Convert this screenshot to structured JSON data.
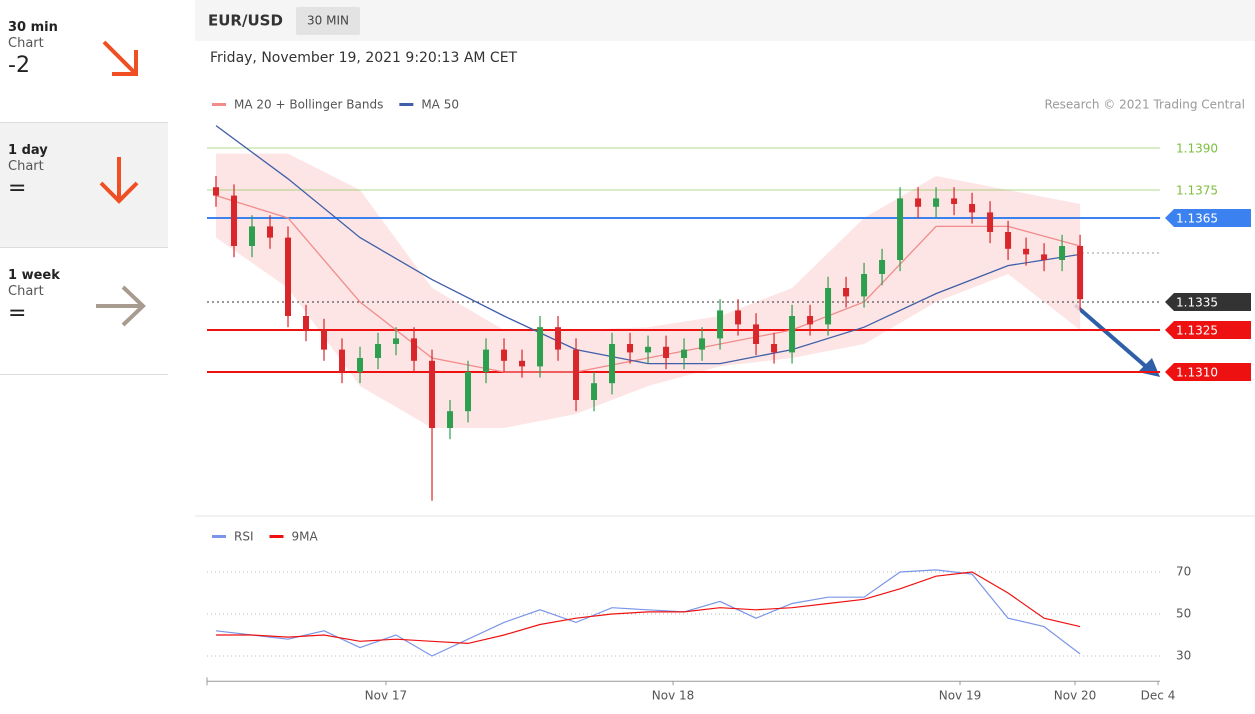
{
  "sidebar": [
    {
      "period": "30 min",
      "label": "Chart",
      "value": -2
    },
    {
      "period": "1 day",
      "label": "Chart",
      "value": "="
    },
    {
      "period": "1 week",
      "label": "Chart",
      "value": "="
    }
  ],
  "header": {
    "symbol": "EUR/USD",
    "interval": "30 MIN",
    "timestamp": "Friday, November 19, 2021 9:20:13 AM CET",
    "credit": "Research © 2021 Trading Central"
  },
  "chart_data": [
    {
      "type": "candlestick",
      "ylim": [
        1.1259,
        1.14
      ],
      "xlim": [
        -0.5,
        52.44
      ],
      "up_color": "#2e9e4f",
      "down_color": "#d9262b",
      "ohlc": {
        "open": [
          1.1376,
          1.1373,
          1.1355,
          1.1362,
          1.1358,
          1.133,
          1.1325,
          1.1318,
          1.131,
          1.1315,
          1.132,
          1.1322,
          1.1314,
          1.129,
          1.1296,
          1.131,
          1.1318,
          1.1314,
          1.1312,
          1.1326,
          1.1318,
          1.13,
          1.1306,
          1.132,
          1.1317,
          1.1319,
          1.1315,
          1.1318,
          1.1322,
          1.1332,
          1.1327,
          1.132,
          1.1317,
          1.133,
          1.1327,
          1.134,
          1.1337,
          1.1345,
          1.135,
          1.1372,
          1.1369,
          1.1372,
          1.137,
          1.1367,
          1.136,
          1.1354,
          1.1352,
          1.135,
          1.1355
        ],
        "high": [
          1.138,
          1.1377,
          1.1366,
          1.1366,
          1.1362,
          1.1334,
          1.1329,
          1.1322,
          1.1319,
          1.1324,
          1.1326,
          1.1326,
          1.1318,
          1.13,
          1.1314,
          1.1322,
          1.1322,
          1.1318,
          1.133,
          1.133,
          1.1322,
          1.131,
          1.1324,
          1.1324,
          1.1323,
          1.1323,
          1.1322,
          1.1326,
          1.1336,
          1.1336,
          1.1331,
          1.1324,
          1.1334,
          1.1334,
          1.1344,
          1.1344,
          1.1349,
          1.1354,
          1.1376,
          1.1376,
          1.1376,
          1.1376,
          1.1374,
          1.1371,
          1.1364,
          1.1358,
          1.1356,
          1.1359,
          1.1359
        ],
        "low": [
          1.1369,
          1.1351,
          1.1351,
          1.1354,
          1.1326,
          1.1321,
          1.1314,
          1.1306,
          1.1306,
          1.1311,
          1.1316,
          1.131,
          1.1264,
          1.1286,
          1.1292,
          1.1306,
          1.131,
          1.1308,
          1.1308,
          1.1314,
          1.1296,
          1.1296,
          1.1302,
          1.1313,
          1.1313,
          1.1311,
          1.1311,
          1.1314,
          1.1318,
          1.1323,
          1.1316,
          1.1313,
          1.1313,
          1.1323,
          1.1323,
          1.1333,
          1.1333,
          1.1341,
          1.1346,
          1.1365,
          1.1365,
          1.1366,
          1.1363,
          1.1356,
          1.135,
          1.1348,
          1.1346,
          1.1346,
          1.1332
        ],
        "close": [
          1.1373,
          1.1355,
          1.1362,
          1.1358,
          1.133,
          1.1325,
          1.1318,
          1.131,
          1.1315,
          1.132,
          1.1322,
          1.1314,
          1.129,
          1.1296,
          1.131,
          1.1318,
          1.1314,
          1.1312,
          1.1326,
          1.1318,
          1.13,
          1.1306,
          1.132,
          1.1317,
          1.1319,
          1.1315,
          1.1318,
          1.1322,
          1.1332,
          1.1327,
          1.132,
          1.1317,
          1.133,
          1.1327,
          1.134,
          1.1337,
          1.1345,
          1.135,
          1.1372,
          1.1369,
          1.1372,
          1.137,
          1.1367,
          1.136,
          1.1354,
          1.1352,
          1.135,
          1.1355,
          1.1336
        ]
      },
      "series": [
        {
          "name": "MA 20 + Bollinger Bands",
          "color": "#f28b8b",
          "band_color": "#fde0e0",
          "x": [
            0,
            4,
            8,
            12,
            16,
            20,
            24,
            28,
            32,
            36,
            40,
            44,
            48
          ],
          "values": [
            1.1373,
            1.1365,
            1.1335,
            1.1315,
            1.131,
            1.131,
            1.1315,
            1.132,
            1.1325,
            1.1335,
            1.1362,
            1.1362,
            1.1355
          ],
          "upper": [
            1.1388,
            1.1388,
            1.1375,
            1.134,
            1.1325,
            1.1325,
            1.1326,
            1.133,
            1.134,
            1.1365,
            1.138,
            1.1375,
            1.137
          ],
          "lower": [
            1.1358,
            1.134,
            1.1305,
            1.129,
            1.129,
            1.1295,
            1.1305,
            1.1312,
            1.1315,
            1.132,
            1.1335,
            1.1345,
            1.1325
          ]
        },
        {
          "name": "MA 50",
          "color": "#3f5fa8",
          "x": [
            0,
            4,
            8,
            12,
            16,
            20,
            24,
            28,
            32,
            36,
            40,
            44,
            48
          ],
          "values": [
            1.1398,
            1.1379,
            1.1358,
            1.1343,
            1.133,
            1.1318,
            1.1313,
            1.1313,
            1.1318,
            1.1326,
            1.1338,
            1.1348,
            1.1352
          ]
        }
      ],
      "levels": [
        {
          "value": 1.139,
          "label": "1.1390",
          "color": "#7cbf3f",
          "style": "text"
        },
        {
          "value": 1.1375,
          "label": "1.1375",
          "color": "#7cbf3f",
          "style": "text"
        },
        {
          "value": 1.1365,
          "label": "1.1365",
          "color": "#3b82f0",
          "style": "badge"
        },
        {
          "value": 1.1335,
          "label": "1.1335",
          "color": "#333333",
          "style": "badge"
        },
        {
          "value": 1.1325,
          "label": "1.1325",
          "color": "#ee1111",
          "style": "badge"
        },
        {
          "value": 1.131,
          "label": "1.1310",
          "color": "#ee1111",
          "style": "badge"
        }
      ]
    },
    {
      "type": "line",
      "ylim": [
        18,
        81
      ],
      "yticks": [
        30,
        50,
        70
      ],
      "grid": true,
      "xlim": [
        -0.5,
        52.44
      ],
      "xticks": [
        {
          "value": 9.44,
          "label": "Nov 17"
        },
        {
          "value": 25.39,
          "label": "Nov 18"
        },
        {
          "value": 41.33,
          "label": "Nov 19"
        },
        {
          "value": 47.72,
          "label": "Nov 20"
        },
        {
          "value": 52.33,
          "label": "Dec 4"
        }
      ],
      "x": [
        0,
        2,
        4,
        6,
        8,
        10,
        12,
        14,
        16,
        18,
        20,
        22,
        24,
        26,
        28,
        30,
        32,
        34,
        36,
        38,
        40,
        42,
        44,
        46,
        48
      ],
      "series": [
        {
          "name": "RSI",
          "color": "#7b96e8",
          "values": [
            42,
            40,
            38,
            42,
            34,
            40,
            30,
            38,
            46,
            52,
            46,
            53,
            52,
            51,
            56,
            48,
            55,
            58,
            58,
            70,
            71,
            69,
            48,
            44,
            31
          ]
        },
        {
          "name": "9MA",
          "color": "#ee1111",
          "values": [
            40,
            40,
            39,
            40,
            37,
            38,
            37,
            36,
            40,
            45,
            48,
            50,
            51,
            51,
            53,
            52,
            53,
            55,
            57,
            62,
            68,
            70,
            60,
            48,
            44
          ]
        }
      ]
    }
  ]
}
